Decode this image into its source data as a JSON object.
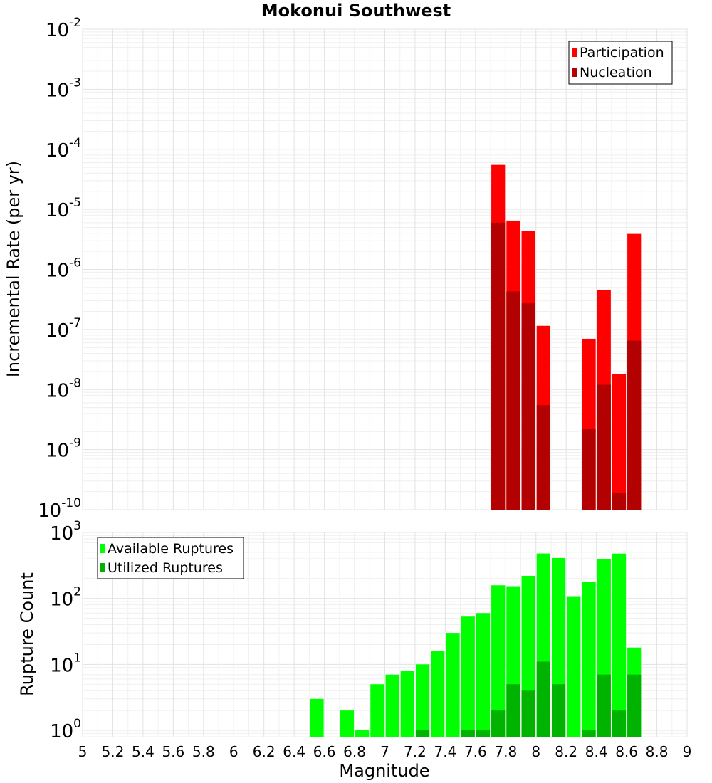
{
  "chart_data": [
    {
      "type": "bar",
      "title": "Mokonui Southwest",
      "xlabel": "Magnitude",
      "ylabel": "Incremental Rate (per yr)",
      "yscale": "log",
      "xlim": [
        5,
        9
      ],
      "ylim": [
        1e-10,
        0.01
      ],
      "ytick_exponents": [
        "-10",
        "-9",
        "-8",
        "-7",
        "-6",
        "-5",
        "-4",
        "-3",
        "-2"
      ],
      "legend_placement": "top-right",
      "grid": true,
      "bin_width": 0.1,
      "series": [
        {
          "name": "Participation",
          "color": "#ff0000",
          "x": [
            7.75,
            7.85,
            7.95,
            8.05,
            8.35,
            8.45,
            8.55,
            8.65
          ],
          "values": [
            5.5e-05,
            6.5e-06,
            4.4e-06,
            1.15e-07,
            7e-08,
            4.5e-07,
            1.8e-08,
            3.9e-06
          ]
        },
        {
          "name": "Nucleation",
          "color": "#b30000",
          "x": [
            7.75,
            7.85,
            7.95,
            8.05,
            8.35,
            8.45,
            8.55,
            8.65
          ],
          "values": [
            6e-06,
            4.3e-07,
            2.8e-07,
            5.5e-09,
            2.2e-09,
            1.2e-08,
            1.9e-10,
            6.5e-08
          ]
        }
      ]
    },
    {
      "type": "bar",
      "xlabel": "Magnitude",
      "ylabel": "Rupture Count",
      "yscale": "log",
      "xlim": [
        5,
        9
      ],
      "ylim": [
        0.8,
        1000
      ],
      "ytick_exponents": [
        "0",
        "1",
        "2",
        "3"
      ],
      "xticks": [
        "5",
        "5.2",
        "5.4",
        "5.6",
        "5.8",
        "6",
        "6.2",
        "6.4",
        "6.6",
        "6.8",
        "7",
        "7.2",
        "7.4",
        "7.6",
        "7.8",
        "8",
        "8.2",
        "8.4",
        "8.6",
        "8.8",
        "9"
      ],
      "legend_placement": "top-left",
      "grid": true,
      "bin_width": 0.1,
      "series": [
        {
          "name": "Available Ruptures",
          "color": "#00ff00",
          "x": [
            6.55,
            6.75,
            6.85,
            6.95,
            7.05,
            7.15,
            7.25,
            7.35,
            7.45,
            7.55,
            7.65,
            7.75,
            7.85,
            7.95,
            8.05,
            8.15,
            8.25,
            8.35,
            8.45,
            8.55,
            8.65
          ],
          "values": [
            3,
            2,
            1,
            5,
            7,
            8,
            10,
            16,
            30,
            53,
            60,
            158,
            153,
            220,
            480,
            410,
            108,
            178,
            398,
            478,
            18
          ]
        },
        {
          "name": "Utilized Ruptures",
          "color": "#00b300",
          "x": [
            7.25,
            7.55,
            7.65,
            7.75,
            7.85,
            7.95,
            8.05,
            8.15,
            8.35,
            8.45,
            8.55,
            8.65
          ],
          "values": [
            1,
            1,
            1,
            2,
            5,
            4,
            11,
            5,
            1,
            7,
            2,
            7
          ]
        }
      ]
    }
  ]
}
